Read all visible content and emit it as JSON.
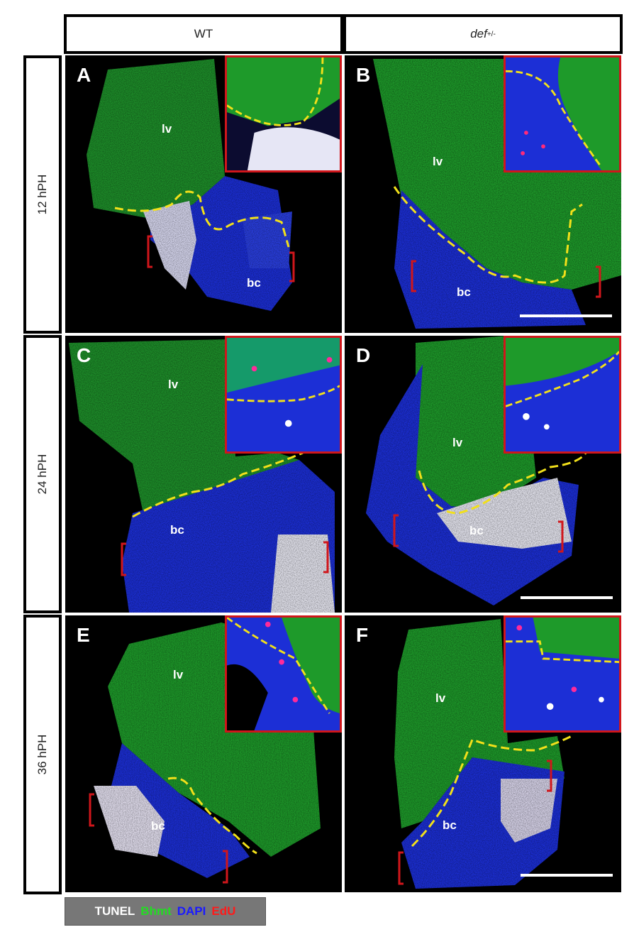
{
  "columns": [
    {
      "label": "WT"
    },
    {
      "label_base": "def",
      "label_sup": "+/-"
    }
  ],
  "rows": [
    {
      "label": "12 hPH"
    },
    {
      "label": "24 hPH"
    },
    {
      "label": "36 hPH"
    }
  ],
  "panels": [
    {
      "letter": "A",
      "lv": "lv",
      "bc": "bc"
    },
    {
      "letter": "B",
      "lv": "lv",
      "bc": "bc"
    },
    {
      "letter": "C",
      "lv": "lv",
      "bc": "bc"
    },
    {
      "letter": "D",
      "lv": "lv",
      "bc": "bc"
    },
    {
      "letter": "E",
      "lv": "lv",
      "bc": "bc"
    },
    {
      "letter": "F",
      "lv": "lv",
      "bc": "bc"
    }
  ],
  "legend": [
    {
      "text": "TUNEL",
      "color": "#ffffff"
    },
    {
      "text": "Bhmt",
      "color": "#22dd22"
    },
    {
      "text": "DAPI",
      "color": "#1a1aff"
    },
    {
      "text": "EdU",
      "color": "#ff1a1a"
    }
  ],
  "colors": {
    "liver": "#1e9a2a",
    "blood_clot": "#1c2fd6",
    "tunel": "#e8e8ff",
    "border_line": "#f2e01a",
    "bracket": "#d0161b",
    "inset_border": "#d0161b"
  }
}
